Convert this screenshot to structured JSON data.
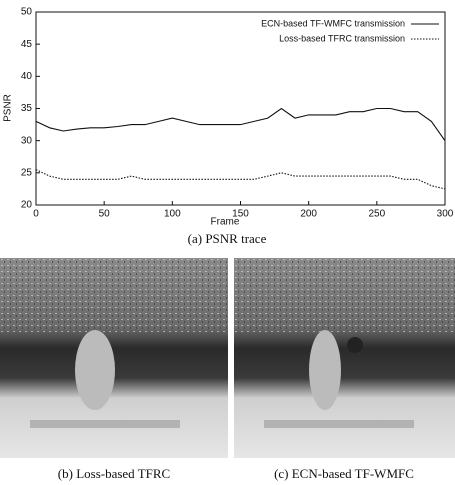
{
  "chart_data": {
    "type": "line",
    "x_label": "Frame",
    "y_label": "PSNR",
    "xlim": [
      0,
      300
    ],
    "xticks": [
      0,
      50,
      100,
      150,
      200,
      250,
      300
    ],
    "ylim": [
      20,
      50
    ],
    "yticks": [
      20,
      25,
      30,
      35,
      40,
      45,
      50
    ],
    "legend": "upper right",
    "x": [
      0,
      10,
      20,
      30,
      40,
      50,
      60,
      70,
      80,
      90,
      100,
      110,
      120,
      130,
      140,
      150,
      160,
      170,
      180,
      190,
      200,
      210,
      220,
      230,
      240,
      250,
      260,
      270,
      280,
      290,
      300
    ],
    "series": [
      {
        "name": "ECN-based TF-WMFC transmission",
        "color": "#111111",
        "line_style": "solid",
        "values": [
          33,
          32,
          31.5,
          31.8,
          32,
          32,
          32.2,
          32.5,
          32.5,
          33,
          33.5,
          33,
          32.5,
          32.5,
          32.5,
          32.5,
          33,
          33.5,
          35,
          33.5,
          34,
          34,
          34,
          34.5,
          34.5,
          35,
          35,
          34.5,
          34.5,
          33,
          30
        ]
      },
      {
        "name": "Loss-based TFRC transmission",
        "color": "#111111",
        "line_style": "dotted",
        "values": [
          25.5,
          24.5,
          24,
          24,
          24,
          24,
          24,
          24.5,
          24,
          24,
          24,
          24,
          24,
          24,
          24,
          24,
          24,
          24.5,
          25,
          24.5,
          24.5,
          24.5,
          24.5,
          24.5,
          24.5,
          24.5,
          24.5,
          24,
          24,
          23,
          22.5
        ]
      }
    ]
  },
  "captions": [
    "(a) PSNR trace",
    "(b) Loss-based TFRC",
    "(c) ECN-based TF-WMFC"
  ]
}
